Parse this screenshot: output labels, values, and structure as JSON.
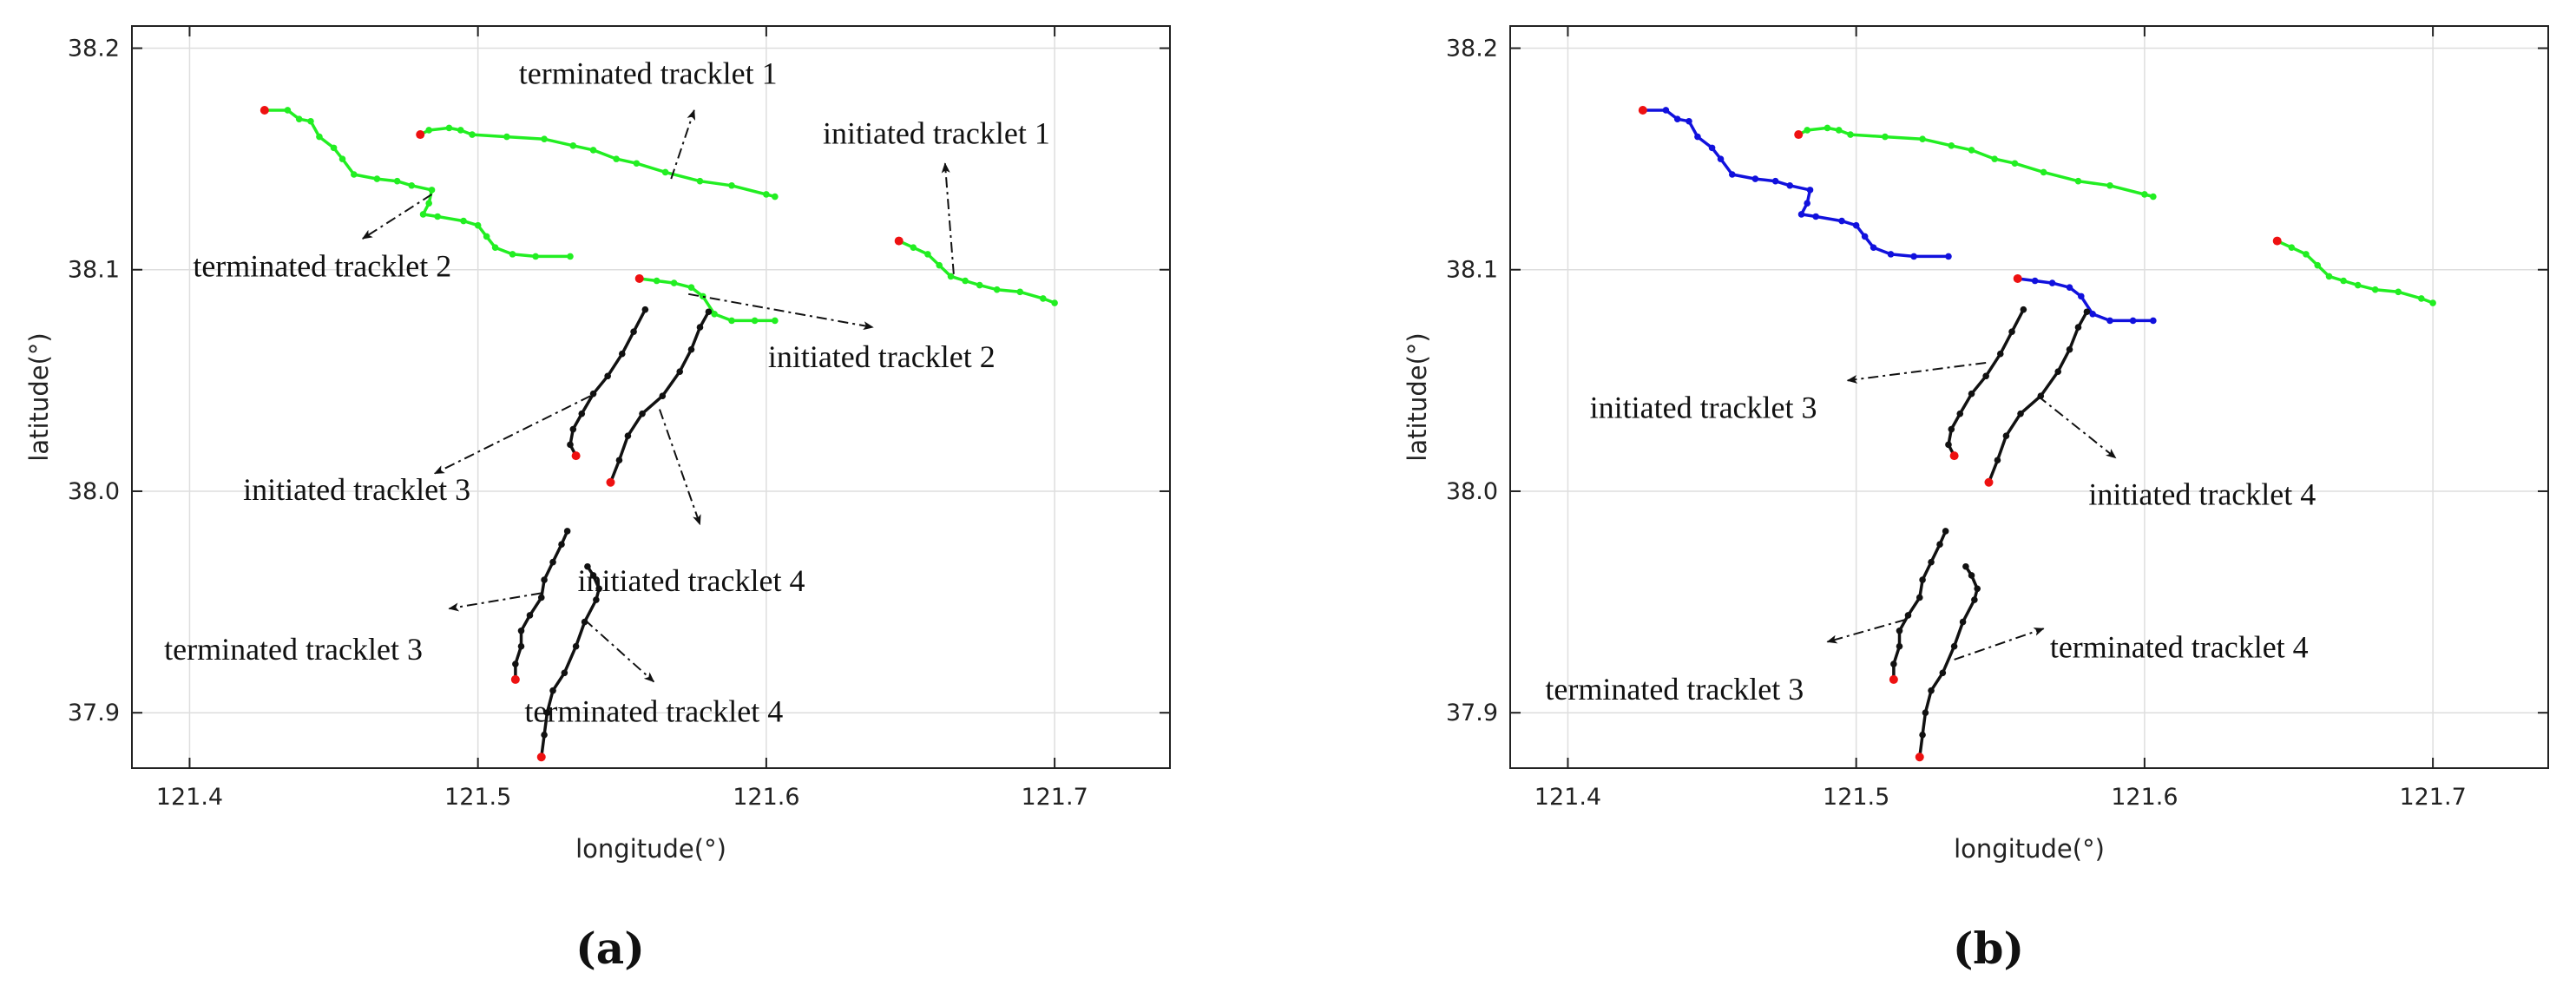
{
  "chart_data": [
    {
      "type": "line",
      "caption": "(a)",
      "xlabel": "longitude(°)",
      "ylabel": "latitude(°)",
      "xlim": [
        121.38,
        121.74
      ],
      "ylim": [
        37.875,
        38.21
      ],
      "xticks": [
        "121.4",
        "121.5",
        "121.6",
        "121.7"
      ],
      "yticks": [
        "37.9",
        "38.0",
        "38.1",
        "38.2"
      ],
      "grid": true,
      "colors": {
        "green": "#22ee22",
        "blue": "#1111dd",
        "black": "#111111",
        "start": "#ee1111"
      },
      "series": [
        {
          "color": "green",
          "points": [
            [
              121.426,
              38.172
            ],
            [
              121.434,
              38.172
            ],
            [
              121.438,
              38.168
            ],
            [
              121.442,
              38.167
            ],
            [
              121.445,
              38.16
            ],
            [
              121.45,
              38.155
            ],
            [
              121.453,
              38.15
            ],
            [
              121.457,
              38.143
            ],
            [
              121.465,
              38.141
            ],
            [
              121.472,
              38.14
            ],
            [
              121.477,
              38.138
            ],
            [
              121.484,
              38.136
            ],
            [
              121.483,
              38.13
            ],
            [
              121.481,
              38.125
            ],
            [
              121.486,
              38.124
            ],
            [
              121.495,
              38.122
            ],
            [
              121.5,
              38.12
            ],
            [
              121.503,
              38.115
            ],
            [
              121.506,
              38.11
            ],
            [
              121.512,
              38.107
            ],
            [
              121.52,
              38.106
            ],
            [
              121.532,
              38.106
            ]
          ]
        },
        {
          "color": "green",
          "points": [
            [
              121.48,
              38.161
            ],
            [
              121.483,
              38.163
            ],
            [
              121.49,
              38.164
            ],
            [
              121.494,
              38.163
            ],
            [
              121.498,
              38.161
            ],
            [
              121.51,
              38.16
            ],
            [
              121.523,
              38.159
            ],
            [
              121.533,
              38.156
            ],
            [
              121.54,
              38.154
            ],
            [
              121.548,
              38.15
            ],
            [
              121.555,
              38.148
            ],
            [
              121.565,
              38.144
            ],
            [
              121.577,
              38.14
            ],
            [
              121.588,
              38.138
            ],
            [
              121.6,
              38.134
            ],
            [
              121.603,
              38.133
            ]
          ]
        },
        {
          "color": "green",
          "points": [
            [
              121.646,
              38.113
            ],
            [
              121.651,
              38.11
            ],
            [
              121.656,
              38.107
            ],
            [
              121.66,
              38.102
            ],
            [
              121.664,
              38.097
            ],
            [
              121.669,
              38.095
            ],
            [
              121.674,
              38.093
            ],
            [
              121.68,
              38.091
            ],
            [
              121.688,
              38.09
            ],
            [
              121.696,
              38.087
            ],
            [
              121.7,
              38.085
            ]
          ]
        },
        {
          "color": "green",
          "points": [
            [
              121.556,
              38.096
            ],
            [
              121.562,
              38.095
            ],
            [
              121.568,
              38.094
            ],
            [
              121.574,
              38.092
            ],
            [
              121.578,
              38.088
            ],
            [
              121.582,
              38.08
            ],
            [
              121.588,
              38.077
            ],
            [
              121.596,
              38.077
            ],
            [
              121.603,
              38.077
            ]
          ]
        },
        {
          "color": "black",
          "points": [
            [
              121.534,
              38.016
            ],
            [
              121.532,
              38.021
            ],
            [
              121.533,
              38.028
            ],
            [
              121.536,
              38.035
            ],
            [
              121.54,
              38.044
            ],
            [
              121.545,
              38.052
            ],
            [
              121.55,
              38.062
            ],
            [
              121.554,
              38.072
            ],
            [
              121.558,
              38.082
            ]
          ]
        },
        {
          "color": "black",
          "points": [
            [
              121.546,
              38.004
            ],
            [
              121.549,
              38.014
            ],
            [
              121.552,
              38.025
            ],
            [
              121.557,
              38.035
            ],
            [
              121.564,
              38.043
            ],
            [
              121.57,
              38.054
            ],
            [
              121.574,
              38.064
            ],
            [
              121.577,
              38.074
            ],
            [
              121.58,
              38.081
            ]
          ]
        },
        {
          "color": "black",
          "points": [
            [
              121.513,
              37.915
            ],
            [
              121.513,
              37.922
            ],
            [
              121.515,
              37.93
            ],
            [
              121.515,
              37.937
            ],
            [
              121.518,
              37.944
            ],
            [
              121.522,
              37.952
            ],
            [
              121.523,
              37.96
            ],
            [
              121.526,
              37.968
            ],
            [
              121.529,
              37.976
            ],
            [
              121.531,
              37.982
            ]
          ]
        },
        {
          "color": "black",
          "points": [
            [
              121.522,
              37.88
            ],
            [
              121.523,
              37.89
            ],
            [
              121.524,
              37.9
            ],
            [
              121.526,
              37.91
            ],
            [
              121.53,
              37.918
            ],
            [
              121.534,
              37.93
            ],
            [
              121.537,
              37.941
            ],
            [
              121.541,
              37.951
            ],
            [
              121.542,
              37.956
            ],
            [
              121.54,
              37.962
            ],
            [
              121.538,
              37.966
            ]
          ]
        }
      ],
      "annotations": [
        {
          "text": "terminated tracklet 1",
          "x": 121.559,
          "y": 38.184,
          "anchor": [
            121.567,
            38.141
          ],
          "tip": [
            121.575,
            38.172
          ]
        },
        {
          "text": "initiated tracklet 1",
          "x": 121.659,
          "y": 38.157,
          "anchor": [
            121.665,
            38.098
          ],
          "tip": [
            121.662,
            38.148
          ]
        },
        {
          "text": "terminated tracklet 2",
          "x": 121.446,
          "y": 38.097,
          "anchor": [
            121.484,
            38.134
          ],
          "tip": [
            121.46,
            38.114
          ]
        },
        {
          "text": "initiated tracklet 2",
          "x": 121.64,
          "y": 38.056,
          "anchor": [
            121.573,
            38.089
          ],
          "tip": [
            121.637,
            38.074
          ]
        },
        {
          "text": "initiated tracklet 3",
          "x": 121.458,
          "y": 37.996,
          "anchor": [
            121.539,
            38.043
          ],
          "tip": [
            121.485,
            38.008
          ]
        },
        {
          "text": "initiated tracklet 4",
          "x": 121.574,
          "y": 37.955,
          "anchor": [
            121.563,
            38.037
          ],
          "tip": [
            121.577,
            37.985
          ]
        },
        {
          "text": "terminated tracklet 3",
          "x": 121.436,
          "y": 37.924,
          "anchor": [
            121.522,
            37.954
          ],
          "tip": [
            121.49,
            37.947
          ]
        },
        {
          "text": "terminated tracklet 4",
          "x": 121.561,
          "y": 37.896,
          "anchor": [
            121.537,
            37.942
          ],
          "tip": [
            121.561,
            37.914
          ]
        }
      ]
    },
    {
      "type": "line",
      "caption": "(b)",
      "xlabel": "longitude(°)",
      "ylabel": "latitude(°)",
      "xlim": [
        121.38,
        121.74
      ],
      "ylim": [
        37.875,
        38.21
      ],
      "xticks": [
        "121.4",
        "121.5",
        "121.6",
        "121.7"
      ],
      "yticks": [
        "37.9",
        "38.0",
        "38.1",
        "38.2"
      ],
      "grid": true,
      "colors": {
        "green": "#22ee22",
        "blue": "#1111dd",
        "black": "#111111",
        "start": "#ee1111"
      },
      "series": [
        {
          "color": "blue",
          "points": [
            [
              121.426,
              38.172
            ],
            [
              121.434,
              38.172
            ],
            [
              121.438,
              38.168
            ],
            [
              121.442,
              38.167
            ],
            [
              121.445,
              38.16
            ],
            [
              121.45,
              38.155
            ],
            [
              121.453,
              38.15
            ],
            [
              121.457,
              38.143
            ],
            [
              121.465,
              38.141
            ],
            [
              121.472,
              38.14
            ],
            [
              121.477,
              38.138
            ],
            [
              121.484,
              38.136
            ],
            [
              121.483,
              38.13
            ],
            [
              121.481,
              38.125
            ],
            [
              121.486,
              38.124
            ],
            [
              121.495,
              38.122
            ],
            [
              121.5,
              38.12
            ],
            [
              121.503,
              38.115
            ],
            [
              121.506,
              38.11
            ],
            [
              121.512,
              38.107
            ],
            [
              121.52,
              38.106
            ],
            [
              121.532,
              38.106
            ]
          ]
        },
        {
          "color": "green",
          "points": [
            [
              121.48,
              38.161
            ],
            [
              121.483,
              38.163
            ],
            [
              121.49,
              38.164
            ],
            [
              121.494,
              38.163
            ],
            [
              121.498,
              38.161
            ],
            [
              121.51,
              38.16
            ],
            [
              121.523,
              38.159
            ],
            [
              121.533,
              38.156
            ],
            [
              121.54,
              38.154
            ],
            [
              121.548,
              38.15
            ],
            [
              121.555,
              38.148
            ],
            [
              121.565,
              38.144
            ],
            [
              121.577,
              38.14
            ],
            [
              121.588,
              38.138
            ],
            [
              121.6,
              38.134
            ],
            [
              121.603,
              38.133
            ]
          ]
        },
        {
          "color": "green",
          "points": [
            [
              121.646,
              38.113
            ],
            [
              121.651,
              38.11
            ],
            [
              121.656,
              38.107
            ],
            [
              121.66,
              38.102
            ],
            [
              121.664,
              38.097
            ],
            [
              121.669,
              38.095
            ],
            [
              121.674,
              38.093
            ],
            [
              121.68,
              38.091
            ],
            [
              121.688,
              38.09
            ],
            [
              121.696,
              38.087
            ],
            [
              121.7,
              38.085
            ]
          ]
        },
        {
          "color": "blue",
          "points": [
            [
              121.556,
              38.096
            ],
            [
              121.562,
              38.095
            ],
            [
              121.568,
              38.094
            ],
            [
              121.574,
              38.092
            ],
            [
              121.578,
              38.088
            ],
            [
              121.582,
              38.08
            ],
            [
              121.588,
              38.077
            ],
            [
              121.596,
              38.077
            ],
            [
              121.603,
              38.077
            ]
          ]
        },
        {
          "color": "black",
          "points": [
            [
              121.534,
              38.016
            ],
            [
              121.532,
              38.021
            ],
            [
              121.533,
              38.028
            ],
            [
              121.536,
              38.035
            ],
            [
              121.54,
              38.044
            ],
            [
              121.545,
              38.052
            ],
            [
              121.55,
              38.062
            ],
            [
              121.554,
              38.072
            ],
            [
              121.558,
              38.082
            ]
          ]
        },
        {
          "color": "black",
          "points": [
            [
              121.546,
              38.004
            ],
            [
              121.549,
              38.014
            ],
            [
              121.552,
              38.025
            ],
            [
              121.557,
              38.035
            ],
            [
              121.564,
              38.043
            ],
            [
              121.57,
              38.054
            ],
            [
              121.574,
              38.064
            ],
            [
              121.577,
              38.074
            ],
            [
              121.58,
              38.081
            ]
          ]
        },
        {
          "color": "black",
          "points": [
            [
              121.513,
              37.915
            ],
            [
              121.513,
              37.922
            ],
            [
              121.515,
              37.93
            ],
            [
              121.515,
              37.937
            ],
            [
              121.518,
              37.944
            ],
            [
              121.522,
              37.952
            ],
            [
              121.523,
              37.96
            ],
            [
              121.526,
              37.968
            ],
            [
              121.529,
              37.976
            ],
            [
              121.531,
              37.982
            ]
          ]
        },
        {
          "color": "black",
          "points": [
            [
              121.522,
              37.88
            ],
            [
              121.523,
              37.89
            ],
            [
              121.524,
              37.9
            ],
            [
              121.526,
              37.91
            ],
            [
              121.53,
              37.918
            ],
            [
              121.534,
              37.93
            ],
            [
              121.537,
              37.941
            ],
            [
              121.541,
              37.951
            ],
            [
              121.542,
              37.956
            ],
            [
              121.54,
              37.962
            ],
            [
              121.538,
              37.966
            ]
          ]
        }
      ],
      "annotations": [
        {
          "text": "initiated tracklet 3",
          "x": 121.447,
          "y": 38.033,
          "anchor": [
            121.545,
            38.058
          ],
          "tip": [
            121.497,
            38.05
          ]
        },
        {
          "text": "initiated tracklet 4",
          "x": 121.62,
          "y": 37.994,
          "anchor": [
            121.563,
            38.043
          ],
          "tip": [
            121.59,
            38.015
          ]
        },
        {
          "text": "terminated tracklet 3",
          "x": 121.437,
          "y": 37.906,
          "anchor": [
            121.517,
            37.942
          ],
          "tip": [
            121.49,
            37.932
          ]
        },
        {
          "text": "terminated tracklet 4",
          "x": 121.612,
          "y": 37.925,
          "anchor": [
            121.534,
            37.924
          ],
          "tip": [
            121.565,
            37.938
          ]
        }
      ]
    }
  ]
}
